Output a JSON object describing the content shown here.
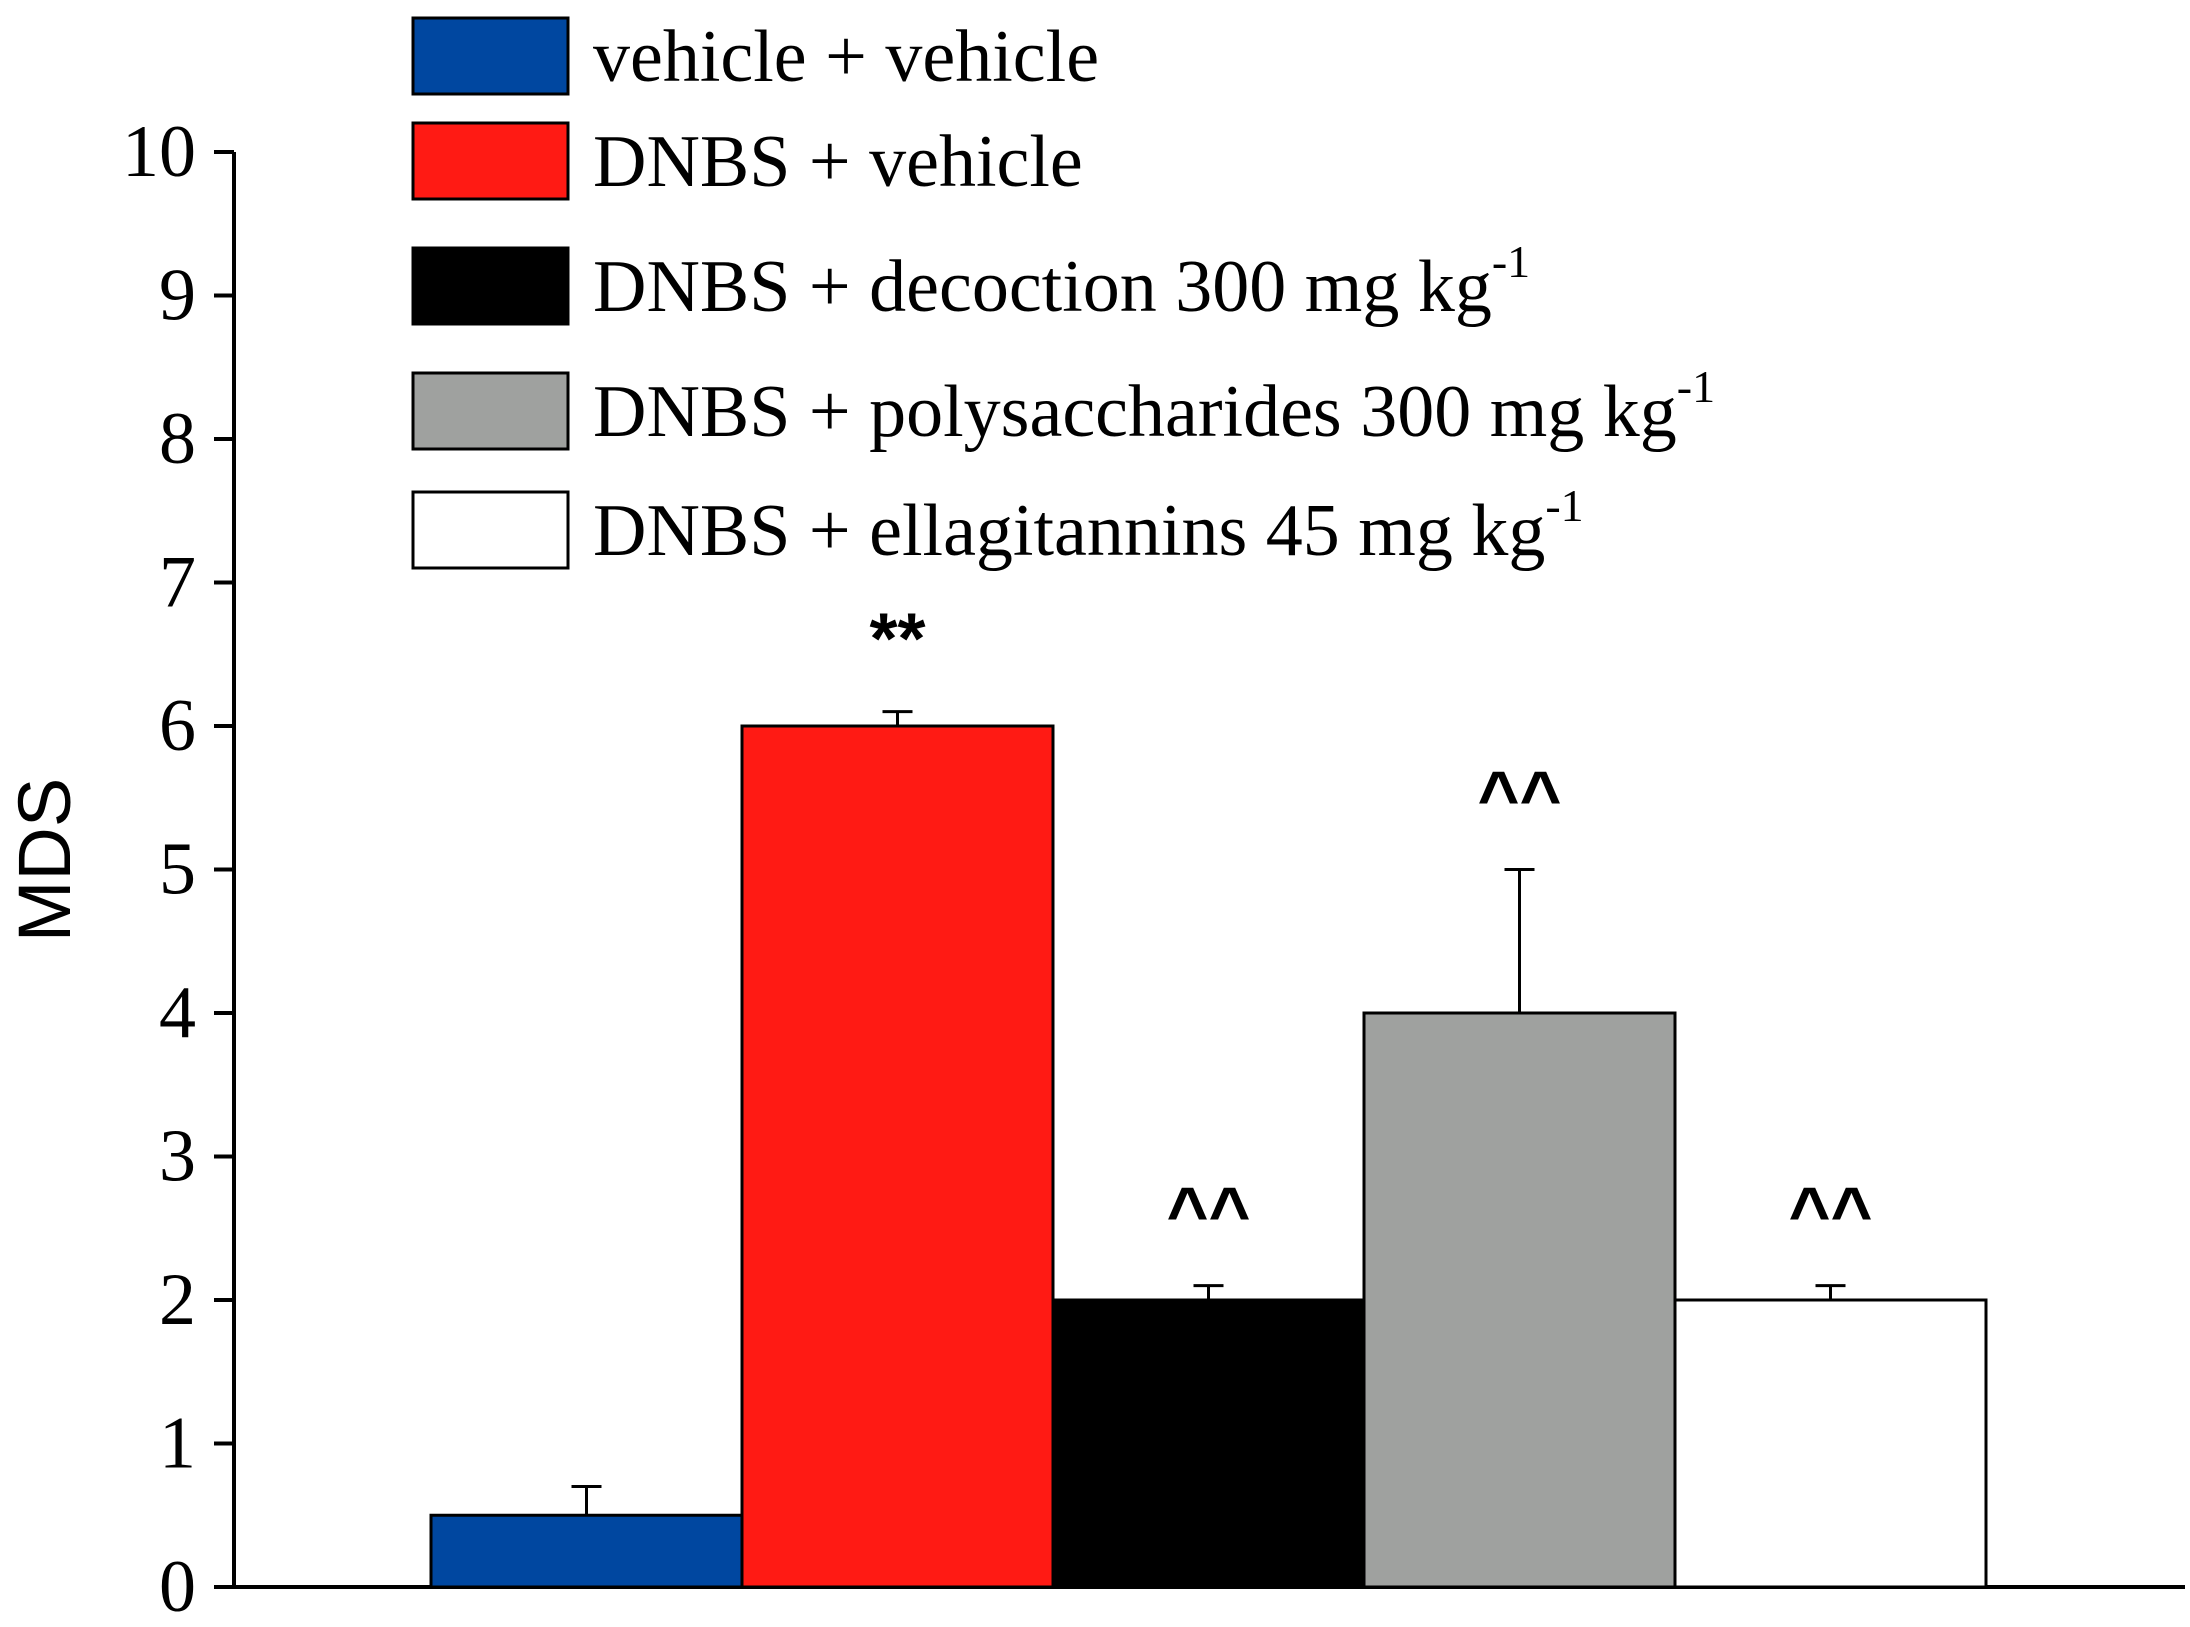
{
  "chart_data": {
    "type": "bar",
    "title": "",
    "xlabel": "",
    "ylabel": "MDS",
    "ylim": [
      0,
      10
    ],
    "yticks": [
      0,
      1,
      2,
      3,
      4,
      5,
      6,
      7,
      8,
      9,
      10
    ],
    "grid": false,
    "legend_position": "top",
    "series": [
      {
        "name": "vehicle + vehicle",
        "value": 0.5,
        "error": 0.2,
        "color": "#0047a0",
        "annotation": ""
      },
      {
        "name": "DNBS + vehicle",
        "unit": "",
        "value": 6.0,
        "error": 0.1,
        "color": "#ff1a14",
        "annotation": "**"
      },
      {
        "name": "DNBS + decoction 300 mg kg",
        "unit": "-1",
        "value": 2.0,
        "error": 0.1,
        "color": "#000000",
        "annotation": "^^"
      },
      {
        "name": "DNBS + polysaccharides 300 mg kg",
        "unit": "-1",
        "value": 4.0,
        "error": 1.0,
        "color": "#9fa19f",
        "annotation": "^^"
      },
      {
        "name": "DNBS + ellagitannins 45 mg kg",
        "unit": "-1",
        "value": 2.0,
        "error": 0.1,
        "color": "#ffffff",
        "annotation": "^^"
      }
    ]
  }
}
